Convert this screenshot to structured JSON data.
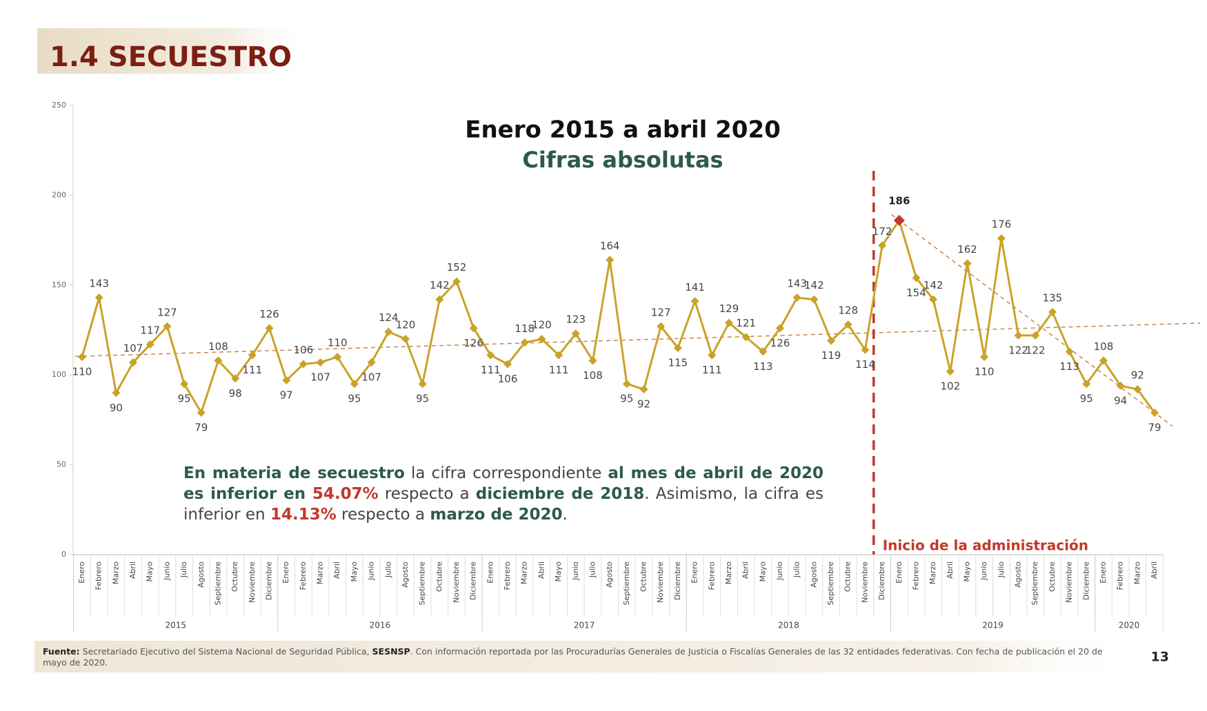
{
  "chart_data": {
    "type": "line",
    "section_title": "1.4 SECUESTRO",
    "title": "Enero 2015 a abril 2020",
    "subtitle": "Cifras absolutas",
    "categories": [
      "Enero",
      "Febrero",
      "Marzo",
      "Abril",
      "Mayo",
      "Junio",
      "Julio",
      "Agosto",
      "Septiembre",
      "Octubre",
      "Noviembre",
      "Diciembre",
      "Enero",
      "Febrero",
      "Marzo",
      "Abril",
      "Mayo",
      "Junio",
      "Julio",
      "Agosto",
      "Septiembre",
      "Octubre",
      "Noviembre",
      "Diciembre",
      "Enero",
      "Febrero",
      "Marzo",
      "Abril",
      "Mayo",
      "Junio",
      "Julio",
      "Agosto",
      "Septiembre",
      "Octubre",
      "Noviembre",
      "Diciembre",
      "Enero",
      "Febrero",
      "Marzo",
      "Abril",
      "Mayo",
      "Junio",
      "Julio",
      "Agosto",
      "Septiembre",
      "Octubre",
      "Noviembre",
      "Diciembre",
      "Enero",
      "Febrero",
      "Marzo",
      "Abril",
      "Mayo",
      "Junio",
      "Julio",
      "Agosto",
      "Septiembre",
      "Octubre",
      "Noviembre",
      "Diciembre",
      "Enero",
      "Febrero",
      "Marzo",
      "Abril"
    ],
    "years": [
      "2015",
      "2016",
      "2017",
      "2018",
      "2019",
      "2020"
    ],
    "values": [
      110,
      143,
      90,
      107,
      117,
      127,
      95,
      79,
      108,
      98,
      111,
      126,
      97,
      106,
      107,
      110,
      95,
      107,
      124,
      120,
      95,
      142,
      152,
      126,
      111,
      106,
      118,
      120,
      111,
      123,
      108,
      164,
      95,
      92,
      127,
      115,
      141,
      111,
      129,
      121,
      113,
      126,
      143,
      142,
      119,
      128,
      114,
      172,
      186,
      154,
      142,
      102,
      162,
      110,
      176,
      122,
      122,
      135,
      113,
      95,
      108,
      94,
      92,
      79
    ],
    "color": "#c9a227",
    "highlight_color": "#c0392b",
    "ylim": [
      0,
      250
    ],
    "yticks": [
      0,
      50,
      100,
      150,
      200,
      250
    ],
    "marker_label": "Inicio de la administración",
    "annotation": [
      {
        "text": "En materia de secuestro",
        "style": "green"
      },
      {
        "text": " la cifra correspondiente ",
        "style": "normal"
      },
      {
        "text": "al mes de abril de 2020 es inferior en",
        "style": "green"
      },
      {
        "text": " 54.07%",
        "style": "red"
      },
      {
        "text": " respecto a ",
        "style": "normal"
      },
      {
        "text": "diciembre de 2018",
        "style": "green"
      },
      {
        "text": ". Asimismo, la cifra es inferior en ",
        "style": "normal"
      },
      {
        "text": "14.13%",
        "style": "red"
      },
      {
        "text": " respecto a ",
        "style": "normal"
      },
      {
        "text": "marzo de 2020",
        "style": "green"
      },
      {
        "text": ".",
        "style": "normal"
      }
    ],
    "source": [
      {
        "text": "Fuente:",
        "style": "bold"
      },
      {
        "text": " Secretariado Ejecutivo del Sistema Nacional de Seguridad Pública, ",
        "style": "normal"
      },
      {
        "text": "SESNSP",
        "style": "bold"
      },
      {
        "text": ". Con información reportada por las Procuradurías Generales de Justicia o Fiscalías Generales de las 32 entidades federativas. Con fecha de publicación el 20 de mayo de 2020.",
        "style": "normal"
      }
    ],
    "page_number": "13"
  }
}
